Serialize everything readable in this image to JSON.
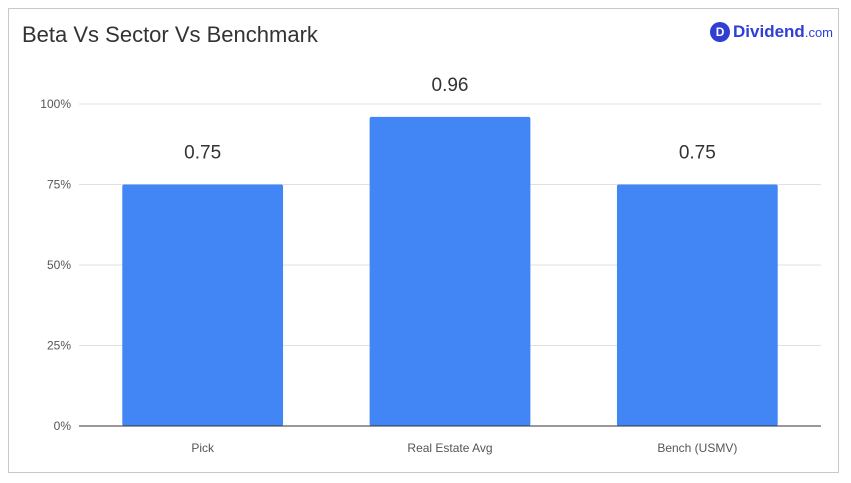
{
  "header": {
    "title": "Beta Vs Sector Vs Benchmark"
  },
  "logo": {
    "mark": "D",
    "word": "Dividend",
    "tld": ".com",
    "color": "#2f3fd4"
  },
  "chart_data": {
    "type": "bar",
    "title": "Beta Vs Sector Vs Benchmark",
    "categories": [
      "Pick",
      "Real Estate Avg",
      "Bench (USMV)"
    ],
    "values": [
      0.75,
      0.96,
      0.75
    ],
    "value_labels": [
      "0.75",
      "0.96",
      "0.75"
    ],
    "ylim": [
      0,
      1
    ],
    "y_ticks": [
      0,
      0.25,
      0.5,
      0.75,
      1
    ],
    "y_tick_labels": [
      "0%",
      "25%",
      "50%",
      "75%",
      "100%"
    ],
    "xlabel": "",
    "ylabel": "",
    "grid": true,
    "bar_color": "#4285f4",
    "legend": "none"
  }
}
